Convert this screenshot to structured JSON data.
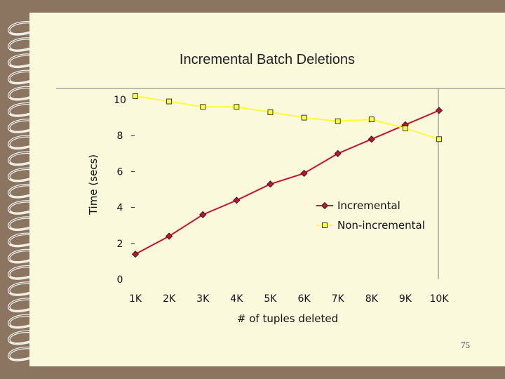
{
  "slide": {
    "title": "Incremental Batch Deletions",
    "page_number": "75"
  },
  "colors": {
    "incremental": "#c8102e",
    "non_incremental": "#ffff33",
    "marker_edge": "#111111",
    "page": "#fbf9dc",
    "background": "#8b7560"
  },
  "chart_data": {
    "type": "line",
    "categories": [
      "1K",
      "2K",
      "3K",
      "4K",
      "5K",
      "6K",
      "7K",
      "8K",
      "9K",
      "10K"
    ],
    "series": [
      {
        "name": "Incremental",
        "values": [
          1.4,
          2.4,
          3.6,
          4.4,
          5.3,
          5.9,
          7.0,
          7.8,
          8.6,
          9.4
        ]
      },
      {
        "name": "Non-incremental",
        "values": [
          10.2,
          9.9,
          9.6,
          9.6,
          9.3,
          9.0,
          8.8,
          8.9,
          8.4,
          7.8
        ]
      }
    ],
    "title": "",
    "xlabel": "# of tuples deleted",
    "ylabel": "Time (secs)",
    "ylim": [
      0,
      10
    ],
    "yticks": [
      0,
      2,
      4,
      6,
      8,
      10
    ],
    "grid": false,
    "legend_position": "bottom-right"
  }
}
